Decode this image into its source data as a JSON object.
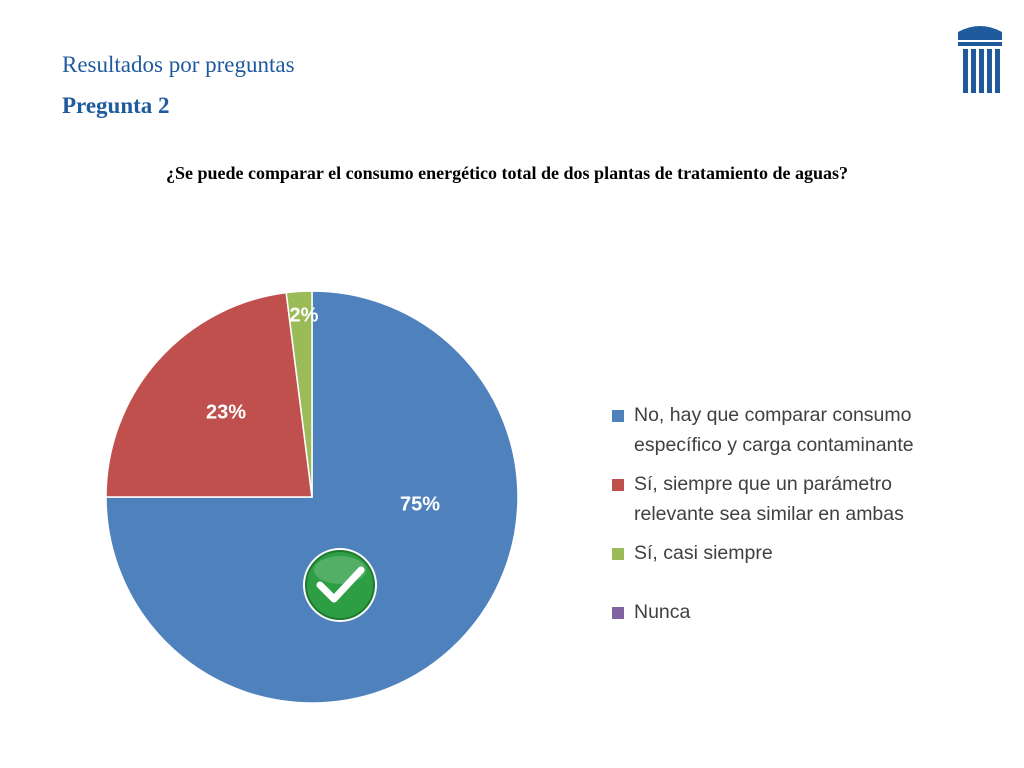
{
  "header": {
    "subtitle": "Resultados por preguntas",
    "title": "Pregunta 2"
  },
  "question": "¿Se puede comparar el consumo energético total de dos plantas de tratamiento de aguas?",
  "logo_icon": "building-columns-icon",
  "colors": {
    "brand_blue": "#1f5a9c",
    "slice_blue": "#4f81bd",
    "slice_red": "#c0504d",
    "slice_green": "#9bbb59",
    "slice_purple": "#8064a2",
    "check_green": "#2e9e44"
  },
  "chart_data": {
    "type": "pie",
    "series": [
      {
        "categories": [
          "No, hay que comparar consumo específico y carga contaminante",
          "Sí, siempre que un parámetro relevante sea similar en ambas",
          "Sí, casi siempre",
          "Nunca"
        ],
        "values": [
          75,
          23,
          2,
          0
        ],
        "labels": [
          "75%",
          "23%",
          "2%",
          ""
        ],
        "colors": [
          "#4f81bd",
          "#c0504d",
          "#9bbb59",
          "#8064a2"
        ]
      }
    ],
    "legend_position": "right",
    "correct_answer_marker": "check-icon"
  },
  "legend": [
    {
      "line1": "No, hay que comparar consumo",
      "line2": "específico y carga contaminante"
    },
    {
      "line1": "Sí, siempre que un parámetro",
      "line2": "relevante sea similar en ambas"
    },
    {
      "line1": "Sí, casi siempre",
      "line2": ""
    },
    {
      "line1": "Nunca",
      "line2": ""
    }
  ]
}
